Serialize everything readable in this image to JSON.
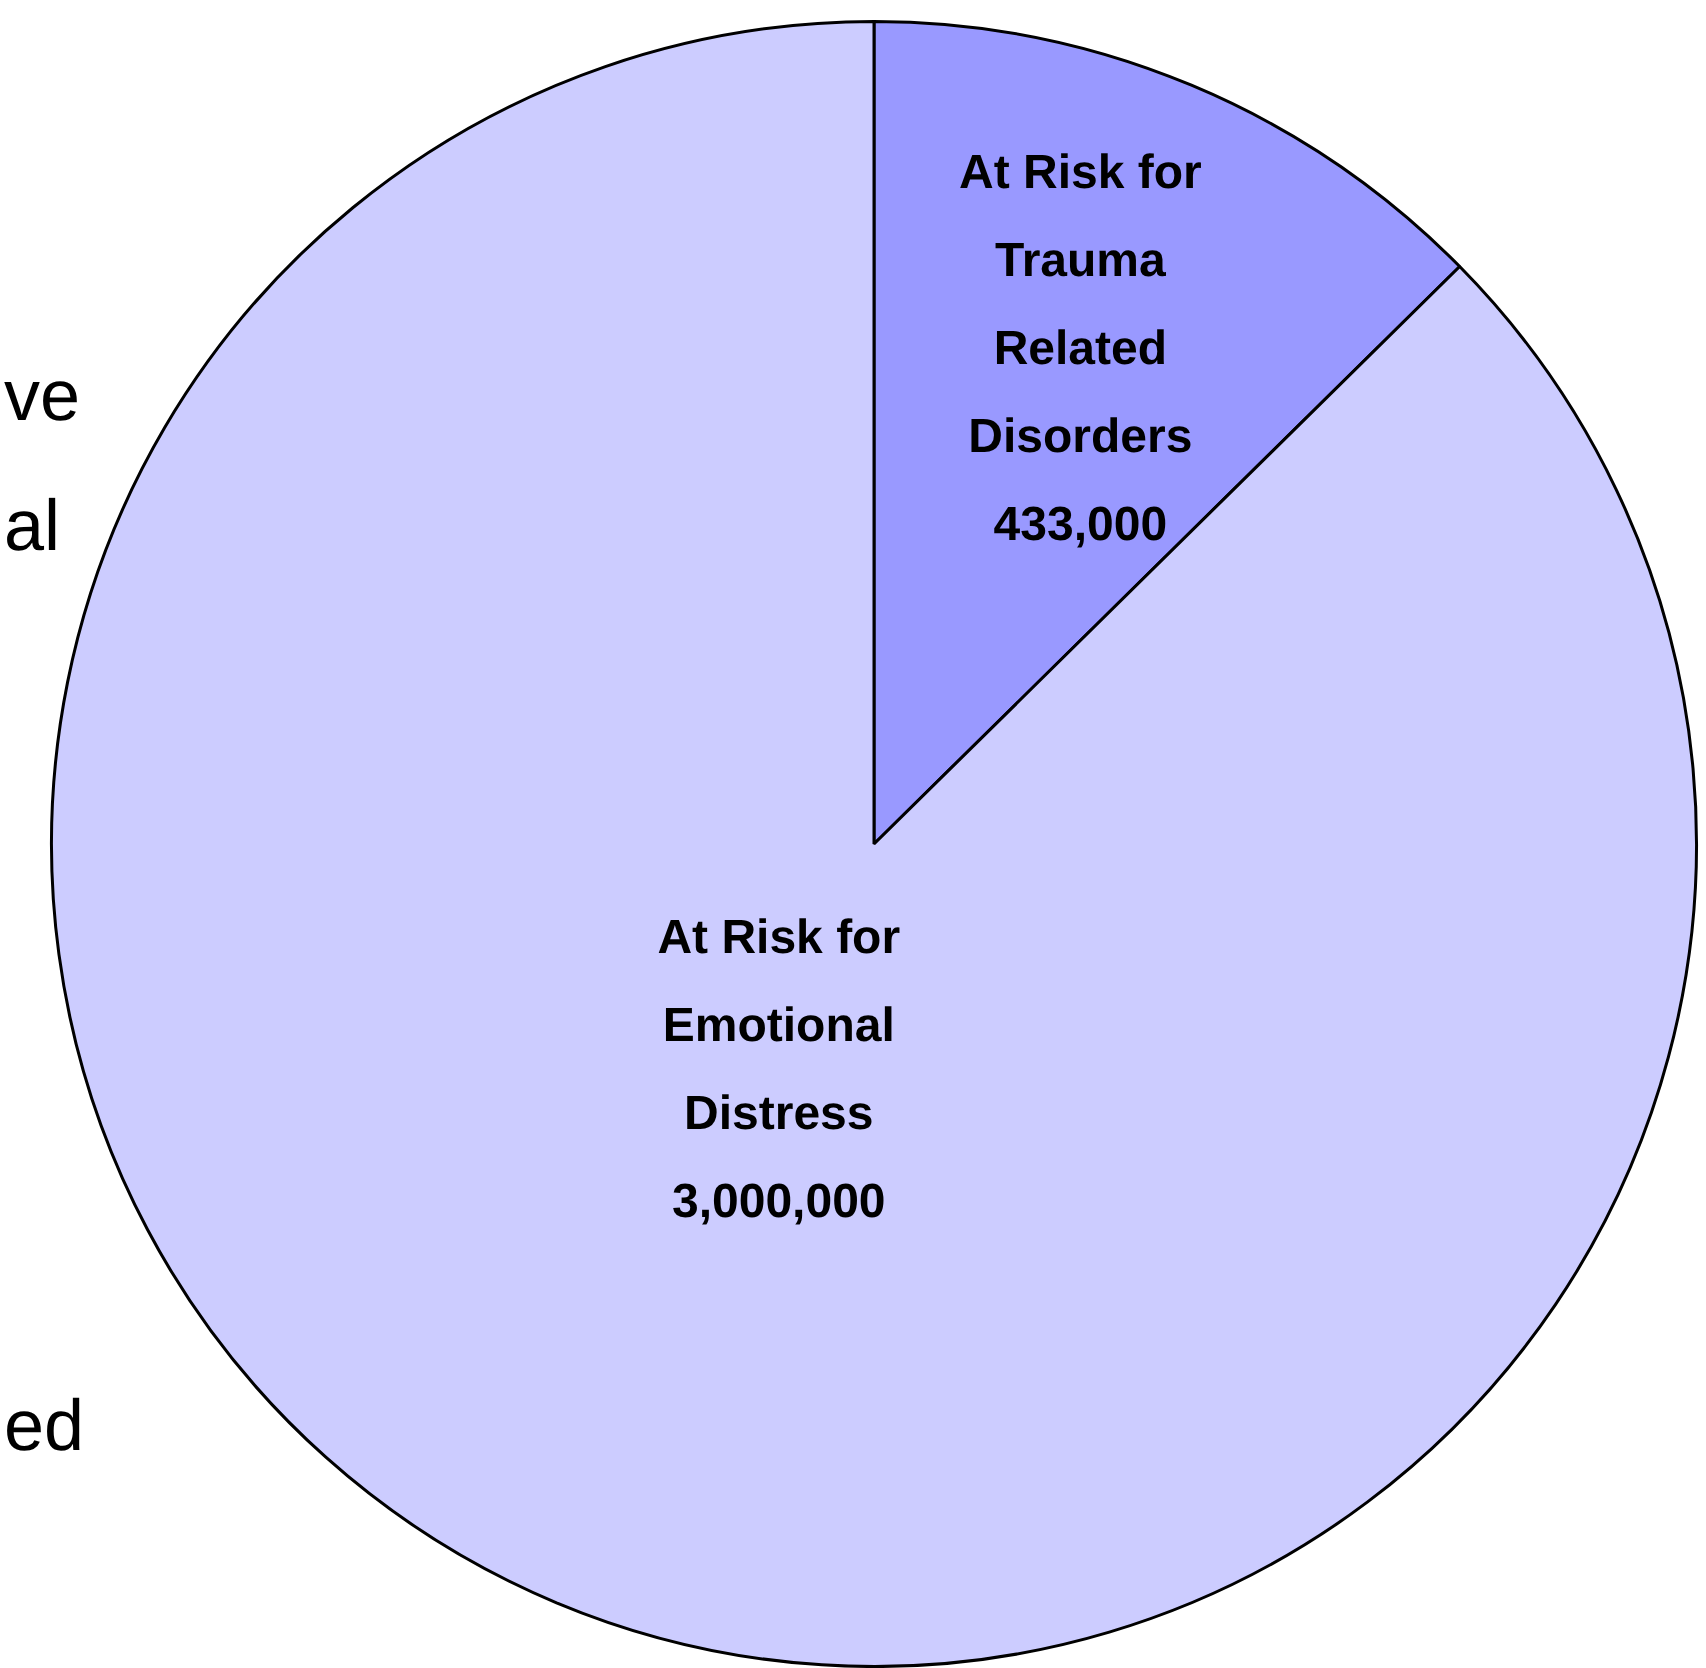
{
  "chart_data": {
    "type": "pie",
    "categories": [
      "At Risk for Trauma Related Disorders",
      "At Risk for Emotional Distress"
    ],
    "values": [
      433000,
      3000000
    ],
    "colors": [
      "#9999ff",
      "#ccccff"
    ],
    "value_labels": [
      "433,000",
      "3,000,000"
    ],
    "annotations": [
      "ve",
      "al",
      "ed"
    ]
  }
}
